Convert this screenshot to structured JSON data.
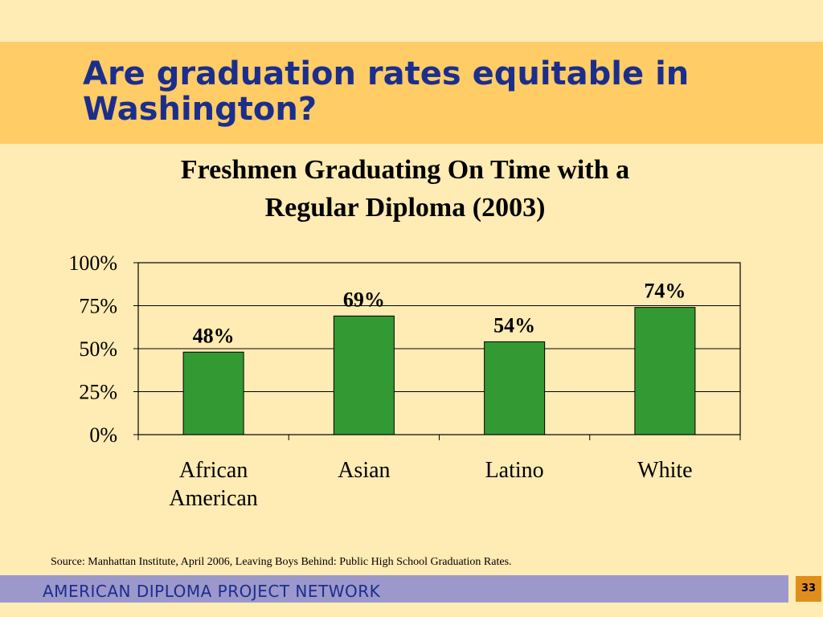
{
  "slide": {
    "title": "Are graduation rates equitable in\nWashington?",
    "source": "Source: Manhattan Institute, April 2006, Leaving Boys Behind: Public High School Graduation Rates.",
    "footer": "AMERICAN DIPLOMA PROJECT NETWORK",
    "page_number": "33"
  },
  "colors": {
    "background": "#FFEBB4",
    "title_band": "#FFCC66",
    "title_text": "#1B2E8C",
    "bar_fill": "#339933",
    "footer_bar": "#9C98CC",
    "page_badge": "#E08E1B"
  },
  "chart_data": {
    "type": "bar",
    "title_lines": [
      "Freshmen Graduating On Time with a",
      "Regular Diploma (2003)"
    ],
    "categories": [
      [
        "African",
        "American"
      ],
      [
        "Asian"
      ],
      [
        "Latino"
      ],
      [
        "White"
      ]
    ],
    "values": [
      48,
      69,
      54,
      74
    ],
    "data_labels": [
      "48%",
      "69%",
      "54%",
      "74%"
    ],
    "yticks": [
      0,
      25,
      50,
      75,
      100
    ],
    "ytick_labels": [
      "0%",
      "25%",
      "50%",
      "75%",
      "100%"
    ],
    "ylim": [
      0,
      100
    ],
    "grid": true,
    "legend": false
  }
}
